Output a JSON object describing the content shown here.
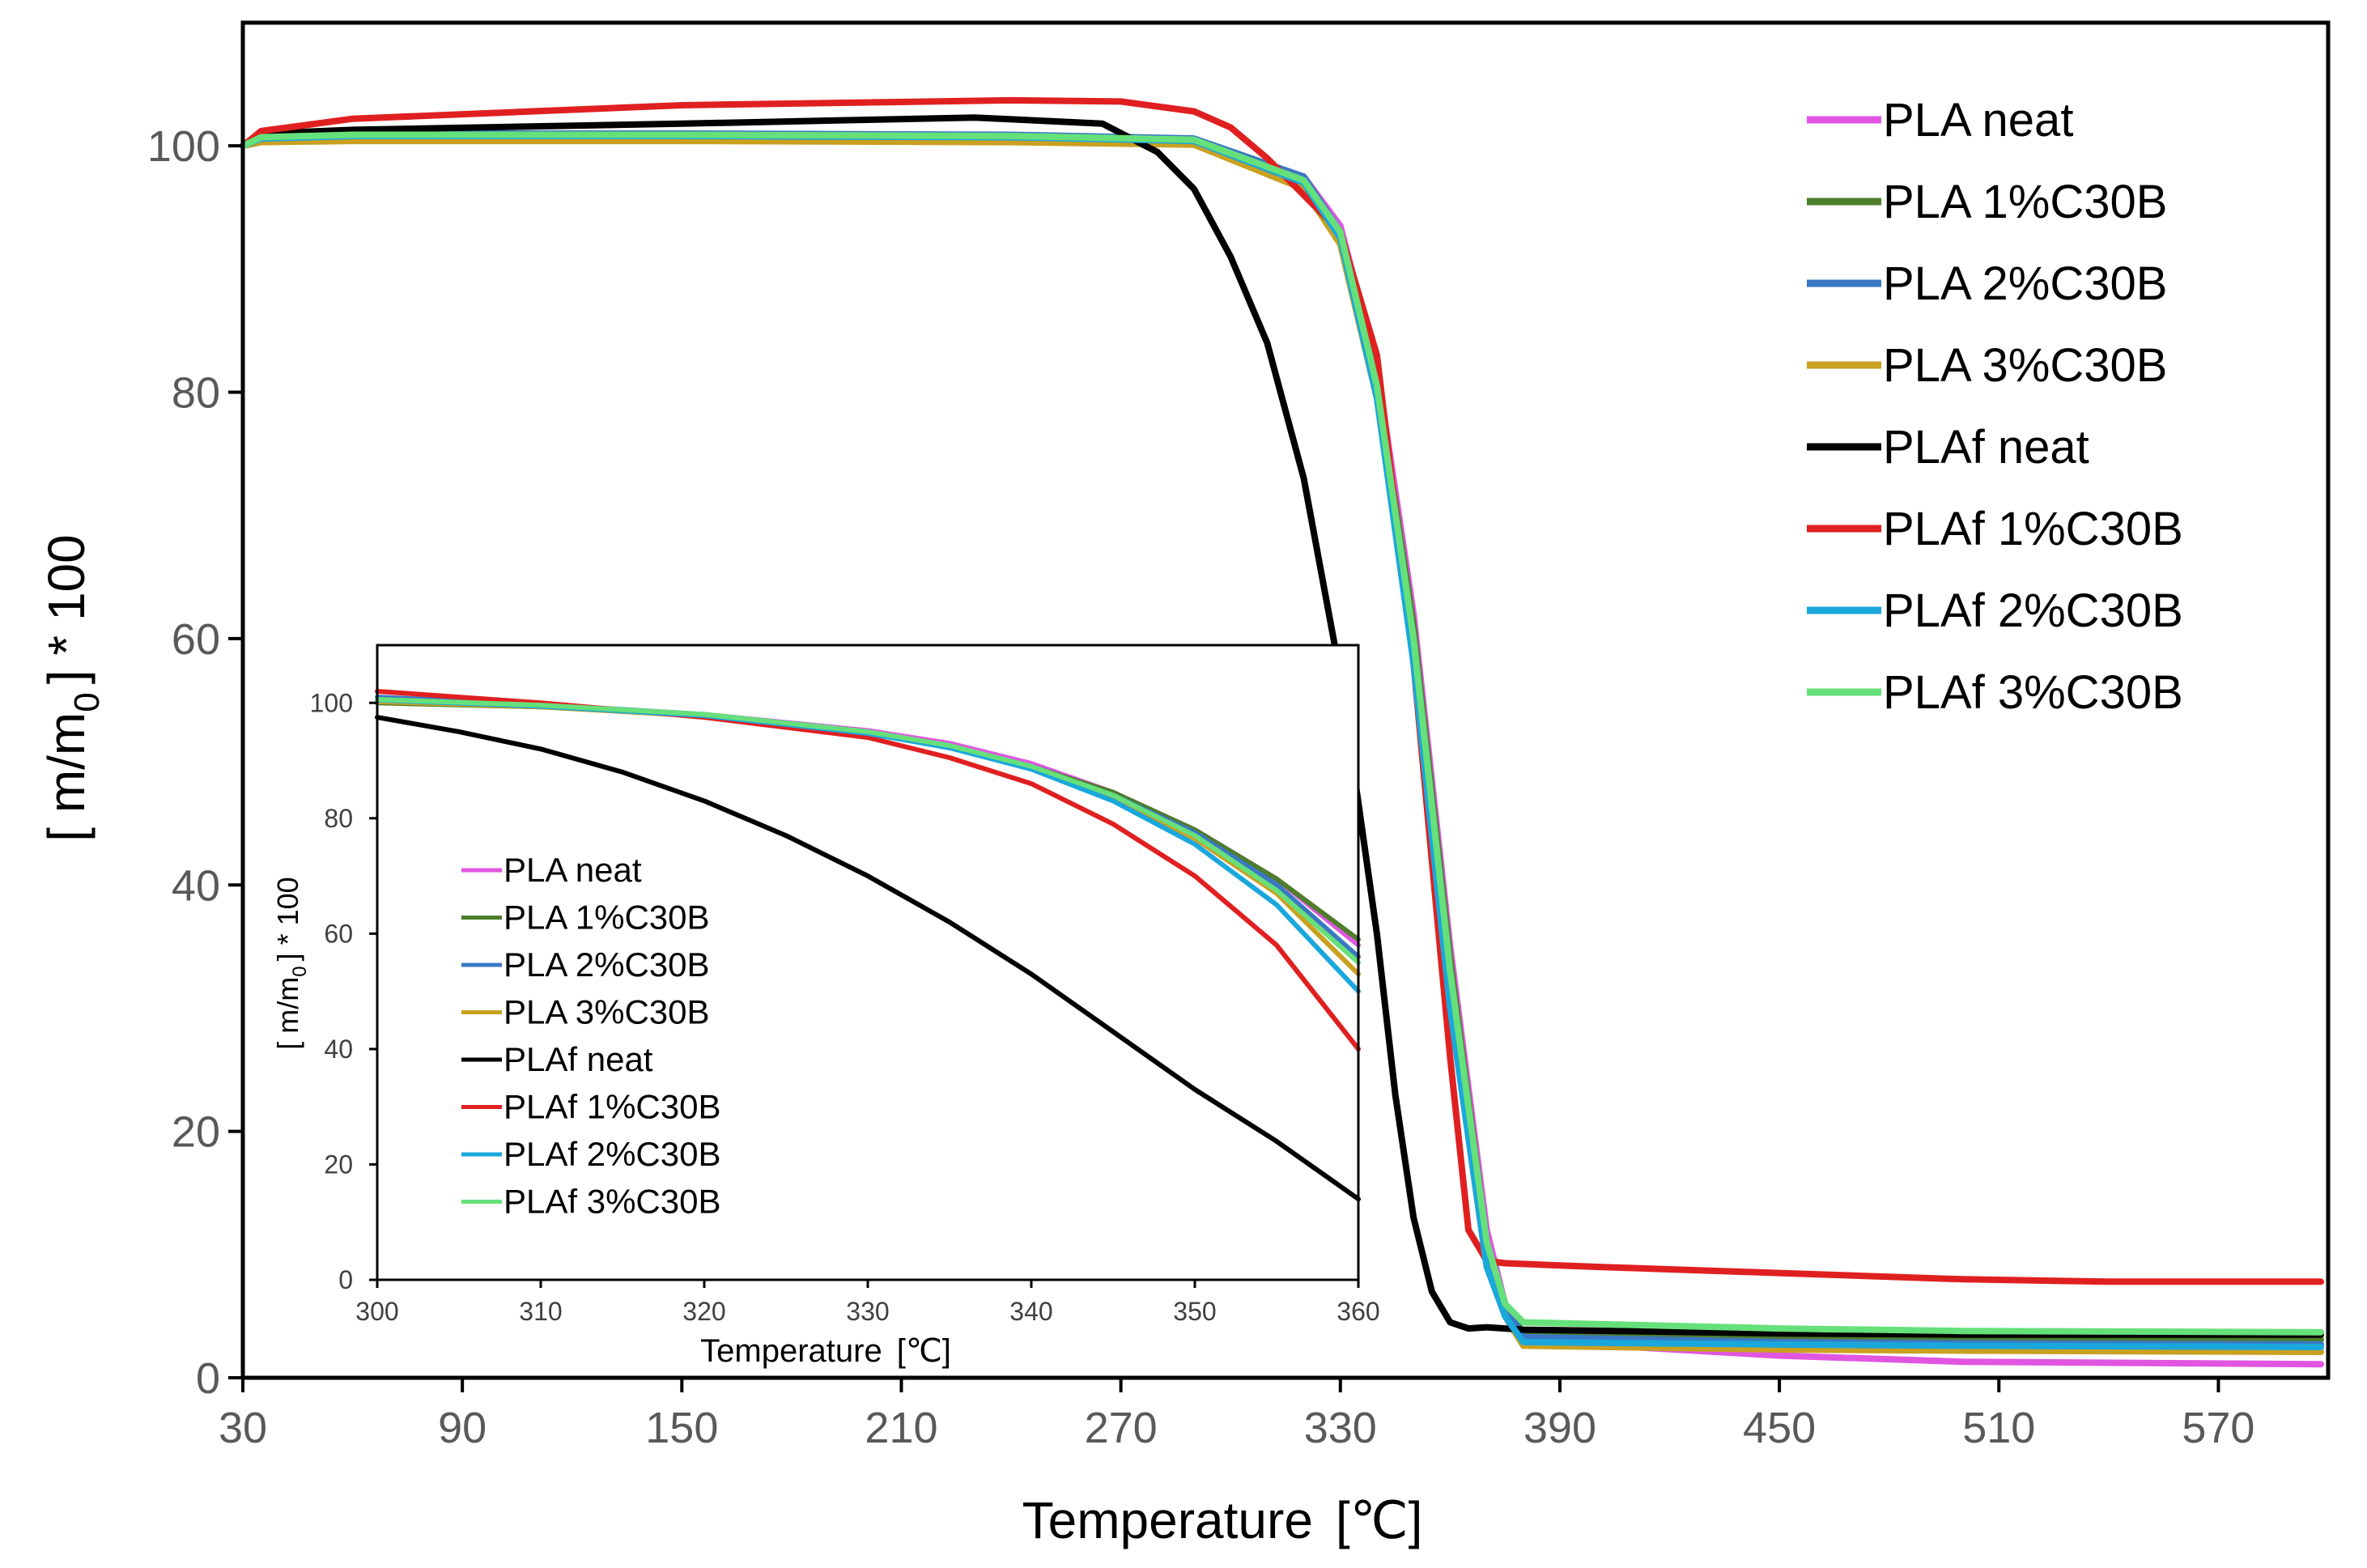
{
  "chart_data": [
    {
      "id": "main",
      "type": "line",
      "title": "",
      "xlabel": "Temperature",
      "xlabel_unit": "[℃]",
      "ylabel": "[ m/m",
      "ylabel_sub": "0",
      "ylabel_suffix": "] * 100",
      "xlim": [
        30,
        600
      ],
      "ylim": [
        0,
        110
      ],
      "xticks": [
        30,
        90,
        150,
        210,
        270,
        330,
        390,
        450,
        510,
        570
      ],
      "yticks": [
        0,
        20,
        40,
        60,
        80,
        100
      ],
      "grid": false,
      "legend_position": "top-right",
      "series": [
        {
          "name": "PLA neat",
          "color": "#e056e0",
          "x": [
            30,
            35,
            60,
            150,
            240,
            290,
            320,
            330,
            340,
            350,
            360,
            370,
            375,
            380,
            450,
            500,
            598
          ],
          "y": [
            100,
            100.6,
            100.8,
            100.8,
            100.7,
            100.4,
            97.5,
            93.5,
            82,
            62,
            35,
            12,
            6,
            3,
            1.8,
            1.3,
            1.1
          ]
        },
        {
          "name": "PLA 1%C30B",
          "color": "#4e7d2c",
          "x": [
            30,
            35,
            60,
            150,
            240,
            290,
            320,
            330,
            340,
            350,
            360,
            370,
            375,
            380,
            450,
            500,
            598
          ],
          "y": [
            100,
            100.4,
            100.6,
            100.6,
            100.5,
            100.3,
            97,
            93,
            81,
            61,
            34,
            11,
            6,
            3.6,
            3.3,
            3.2,
            3.1
          ]
        },
        {
          "name": "PLA 2%C30B",
          "color": "#3a78c3",
          "x": [
            30,
            35,
            60,
            150,
            240,
            290,
            320,
            330,
            340,
            350,
            360,
            370,
            375,
            380,
            450,
            500,
            598
          ],
          "y": [
            100,
            100.8,
            101,
            101,
            100.9,
            100.6,
            97.5,
            93,
            80.5,
            60,
            33,
            11,
            6,
            3.3,
            2.9,
            2.8,
            2.7
          ]
        },
        {
          "name": "PLA 3%C30B",
          "color": "#c9a020",
          "x": [
            30,
            35,
            60,
            150,
            240,
            290,
            320,
            330,
            340,
            350,
            360,
            370,
            375,
            380,
            450,
            500,
            598
          ],
          "y": [
            100,
            100.3,
            100.4,
            100.4,
            100.3,
            100.1,
            96.5,
            92,
            79.5,
            59,
            32,
            10,
            5,
            2.6,
            2.3,
            2.2,
            2.1
          ]
        },
        {
          "name": "PLAf neat",
          "color": "#000000",
          "x": [
            30,
            35,
            60,
            150,
            230,
            265,
            280,
            290,
            300,
            310,
            320,
            330,
            340,
            345,
            350,
            355,
            360,
            365,
            370,
            380,
            450,
            500,
            598
          ],
          "y": [
            100,
            101,
            101.3,
            101.8,
            102.3,
            101.8,
            99.5,
            96.5,
            91,
            84,
            73,
            57,
            36,
            23,
            13,
            7,
            4.5,
            4,
            4.1,
            3.9,
            3.6,
            3.5,
            3.5
          ]
        },
        {
          "name": "PLAf 1%C30B",
          "color": "#e02020",
          "x": [
            30,
            35,
            60,
            150,
            240,
            270,
            290,
            300,
            310,
            320,
            330,
            340,
            350,
            360,
            365,
            370,
            375,
            400,
            450,
            500,
            540,
            598
          ],
          "y": [
            100,
            101.2,
            102.2,
            103.3,
            103.7,
            103.6,
            102.8,
            101.5,
            99,
            96,
            93,
            83,
            58,
            26,
            12,
            9.5,
            9.3,
            9,
            8.5,
            8,
            7.8,
            7.8
          ]
        },
        {
          "name": "PLAf 2%C30B",
          "color": "#1aa7dc",
          "x": [
            30,
            35,
            60,
            150,
            240,
            290,
            320,
            330,
            340,
            350,
            360,
            370,
            375,
            380,
            450,
            500,
            598
          ],
          "y": [
            100,
            100.6,
            100.8,
            100.8,
            100.7,
            100.4,
            97,
            92.5,
            79.5,
            58,
            30,
            9,
            5,
            2.9,
            2.7,
            2.6,
            2.5
          ]
        },
        {
          "name": "PLAf 3%C30B",
          "color": "#66e07a",
          "x": [
            30,
            35,
            60,
            150,
            240,
            290,
            320,
            330,
            340,
            350,
            360,
            370,
            375,
            380,
            450,
            500,
            598
          ],
          "y": [
            100,
            100.7,
            100.9,
            100.9,
            100.8,
            100.5,
            97.2,
            93,
            80.5,
            60,
            33,
            11,
            6,
            4.5,
            4,
            3.8,
            3.7
          ]
        }
      ]
    },
    {
      "id": "inset",
      "type": "line",
      "title": "",
      "xlabel": "Temperature",
      "xlabel_unit": "[℃]",
      "ylabel": "[ m/m",
      "ylabel_sub": "0",
      "ylabel_suffix": "] * 100",
      "xlim": [
        300,
        360
      ],
      "ylim": [
        0,
        110
      ],
      "xticks": [
        300,
        310,
        320,
        330,
        340,
        350,
        360
      ],
      "yticks": [
        0,
        20,
        40,
        60,
        80,
        100
      ],
      "grid": false,
      "legend_position": "left",
      "series": [
        {
          "name": "PLA neat",
          "color": "#e056e0",
          "x": [
            300,
            310,
            320,
            330,
            335,
            340,
            345,
            350,
            355,
            360
          ],
          "y": [
            100.3,
            99.5,
            98,
            95.2,
            93,
            89.5,
            84.5,
            78,
            69.5,
            58
          ]
        },
        {
          "name": "PLA 1%C30B",
          "color": "#4e7d2c",
          "x": [
            300,
            310,
            320,
            330,
            335,
            340,
            345,
            350,
            355,
            360
          ],
          "y": [
            100,
            99.3,
            97.8,
            94.8,
            92.4,
            89,
            84.5,
            78,
            69.5,
            59
          ]
        },
        {
          "name": "PLA 2%C30B",
          "color": "#3a78c3",
          "x": [
            300,
            310,
            320,
            330,
            335,
            340,
            345,
            350,
            355,
            360
          ],
          "y": [
            101,
            99.7,
            98,
            95,
            92.5,
            89,
            84,
            77.5,
            68.5,
            56
          ]
        },
        {
          "name": "PLA 3%C30B",
          "color": "#c9a020",
          "x": [
            300,
            310,
            320,
            330,
            335,
            340,
            345,
            350,
            355,
            360
          ],
          "y": [
            100.2,
            99.3,
            97.7,
            94.7,
            92.3,
            88.7,
            83.5,
            76.5,
            67,
            53
          ]
        },
        {
          "name": "PLAf neat",
          "color": "#000000",
          "x": [
            300,
            305,
            310,
            315,
            320,
            325,
            330,
            335,
            340,
            345,
            350,
            355,
            360
          ],
          "y": [
            97.5,
            95,
            92,
            88,
            83,
            77,
            70,
            62,
            53,
            43,
            33,
            24,
            14
          ]
        },
        {
          "name": "PLAf 1%C30B",
          "color": "#e02020",
          "x": [
            300,
            310,
            320,
            330,
            335,
            340,
            345,
            350,
            355,
            360
          ],
          "y": [
            102,
            100,
            97.5,
            94,
            90.5,
            86,
            79,
            70,
            58,
            40
          ]
        },
        {
          "name": "PLAf 2%C30B",
          "color": "#1aa7dc",
          "x": [
            300,
            310,
            320,
            330,
            335,
            340,
            345,
            350,
            355,
            360
          ],
          "y": [
            100.5,
            99.4,
            97.8,
            94.7,
            92.2,
            88.5,
            83,
            75.5,
            65,
            50
          ]
        },
        {
          "name": "PLAf 3%C30B",
          "color": "#66e07a",
          "x": [
            300,
            310,
            320,
            330,
            335,
            340,
            345,
            350,
            355,
            360
          ],
          "y": [
            100.6,
            99.6,
            98,
            95,
            92.6,
            89,
            84,
            77,
            67.5,
            55
          ]
        }
      ]
    }
  ]
}
